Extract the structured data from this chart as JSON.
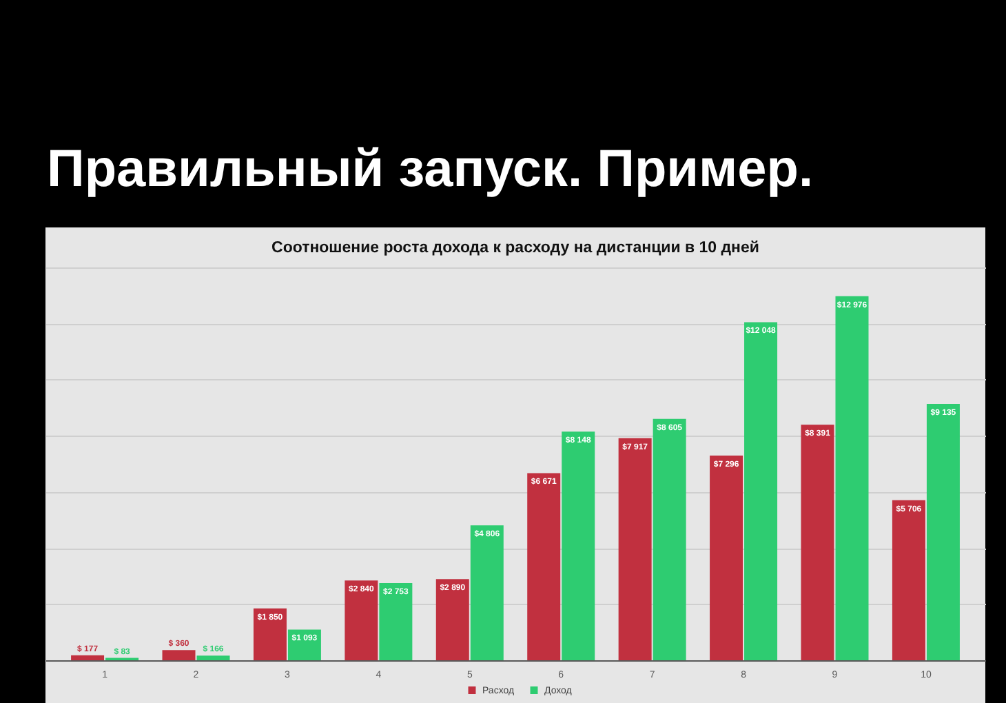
{
  "chart_data": {
    "type": "bar",
    "title": "Правильный запуск. Пример.",
    "subtitle": "Соотношение роста дохода к расходу на дистанции в 10 дней",
    "categories": [
      "1",
      "2",
      "3",
      "4",
      "5",
      "6",
      "7",
      "8",
      "9",
      "10"
    ],
    "series": [
      {
        "name": "Расход",
        "color": "#c1303f",
        "values": [
          177,
          360,
          1850,
          2840,
          2890,
          6671,
          7917,
          7296,
          8391,
          5706
        ],
        "value_labels": [
          "$ 177",
          "$ 360",
          "$1 850",
          "$2 840",
          "$2 890",
          "$6 671",
          "$7 917",
          "$7 296",
          "$8 391",
          "$5 706"
        ]
      },
      {
        "name": "Доход",
        "color": "#2ecc71",
        "values": [
          83,
          166,
          1093,
          2753,
          4806,
          8148,
          8605,
          12048,
          12976,
          9135
        ],
        "value_labels": [
          "$ 83",
          "$ 166",
          "$1 093",
          "$2 753",
          "$4 806",
          "$8 148",
          "$8 605",
          "$12 048",
          "$12 976",
          "$9 135"
        ]
      }
    ],
    "ylim": [
      0,
      14000
    ],
    "yticks": [
      {
        "value": 0,
        "label": null
      },
      {
        "value": 2000,
        "label": null
      },
      {
        "value": 4000,
        "label": null
      },
      {
        "value": 6000,
        "label": null
      },
      {
        "value": 8000,
        "label": null
      },
      {
        "value": 10000,
        "label": null
      },
      {
        "value": 12000,
        "label": null
      },
      {
        "value": 14000,
        "label": null
      }
    ],
    "tick_labels": "x",
    "grid": "y",
    "legend": "bottom"
  }
}
